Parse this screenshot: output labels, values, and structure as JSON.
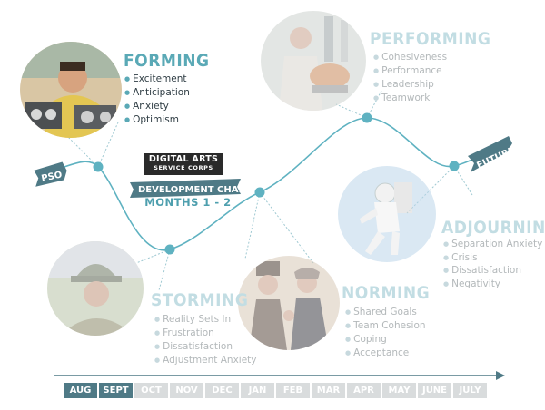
{
  "brand": {
    "line1": "DIGITAL ARTS",
    "line2": "SERVICE CORPS"
  },
  "chart": {
    "title": "DEVELOPMENT CHART",
    "subtitle": "MONTHS 1 - 2"
  },
  "curve": {
    "start_label": "PSO",
    "end_label": "FUTURE",
    "accent_color": "#5fb2c1",
    "dark_color": "#4f7a86"
  },
  "stages": [
    {
      "title": "FORMING",
      "items": [
        "Excitement",
        "Anticipation",
        "Anxiety",
        "Optimism"
      ],
      "active": true
    },
    {
      "title": "STORMING",
      "items": [
        "Reality Sets In",
        "Frustration",
        "Dissatisfaction",
        "Adjustment Anxiety"
      ],
      "active": false
    },
    {
      "title": "NORMING",
      "items": [
        "Shared Goals",
        "Team Cohesion",
        "Coping",
        "Acceptance"
      ],
      "active": false
    },
    {
      "title": "PERFORMING",
      "items": [
        "Cohesiveness",
        "Performance",
        "Leadership",
        "Teamwork"
      ],
      "active": false
    },
    {
      "title": "ADJOURNING",
      "items": [
        "Separation Anxiety",
        "Crisis",
        "Dissatisfaction",
        "Negativity"
      ],
      "active": false
    }
  ],
  "timeline": {
    "months": [
      "AUG",
      "SEPT",
      "OCT",
      "NOV",
      "DEC",
      "JAN",
      "FEB",
      "MAR",
      "APR",
      "MAY",
      "JUNE",
      "JULY"
    ],
    "active_months": [
      "AUG",
      "SEPT"
    ]
  }
}
